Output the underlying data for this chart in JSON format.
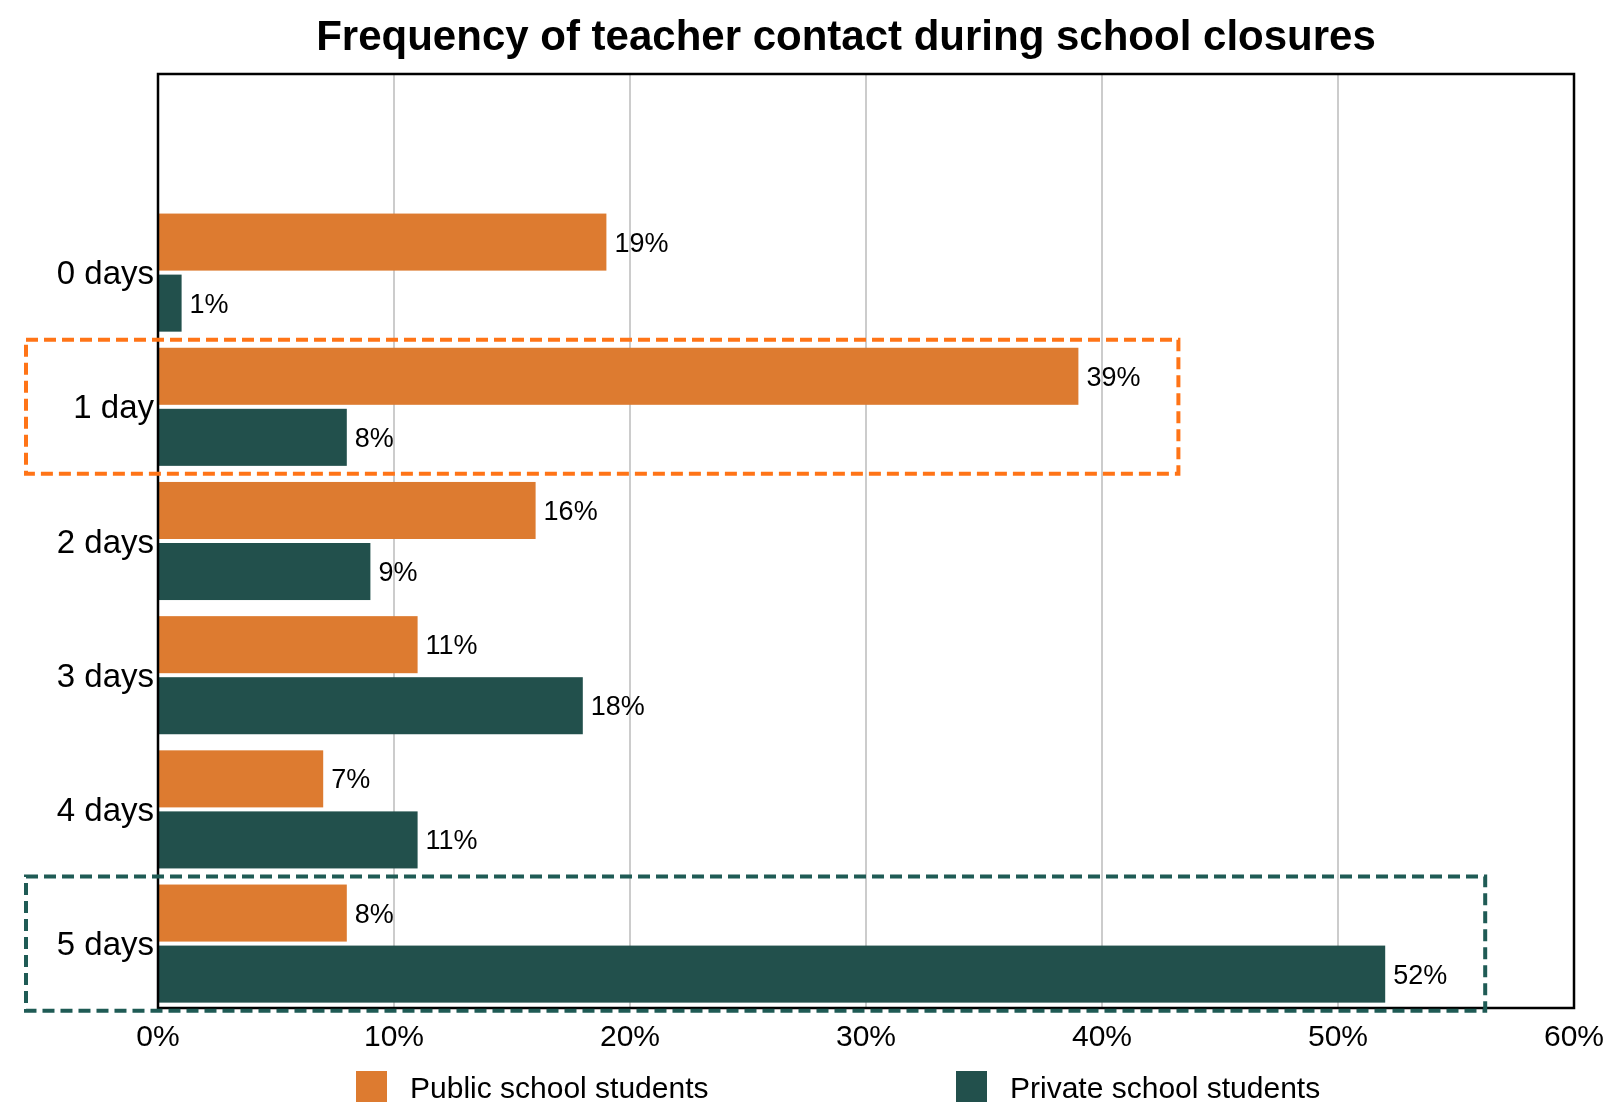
{
  "chart_data": {
    "type": "bar",
    "orientation": "horizontal",
    "title": "Frequency of teacher contact during school closures",
    "categories": [
      null,
      "0 days",
      "1 day",
      "2 days",
      "3 days",
      "4 days",
      "5 days"
    ],
    "series": [
      {
        "name": "Public school students",
        "color": "#dd7b30",
        "values": [
          null,
          19,
          39,
          16,
          11,
          7,
          8
        ],
        "value_labels": [
          null,
          "19%",
          "39%",
          "16%",
          "11%",
          "7%",
          "8%"
        ]
      },
      {
        "name": "Private school students",
        "color": "#22504c",
        "values": [
          null,
          1,
          8,
          9,
          18,
          11,
          52
        ],
        "value_labels": [
          null,
          "1%",
          "8%",
          "9%",
          "18%",
          "11%",
          "52%"
        ]
      }
    ],
    "xlim": [
      0,
      60
    ],
    "xticks": [
      {
        "value": 0,
        "label": "0%"
      },
      {
        "value": 10,
        "label": "10%"
      },
      {
        "value": 20,
        "label": "20%"
      },
      {
        "value": 30,
        "label": "30%"
      },
      {
        "value": 40,
        "label": "40%"
      },
      {
        "value": 50,
        "label": "50%"
      },
      {
        "value": 60,
        "label": "60%"
      }
    ],
    "grid": "x",
    "legend": "bottom"
  }
}
